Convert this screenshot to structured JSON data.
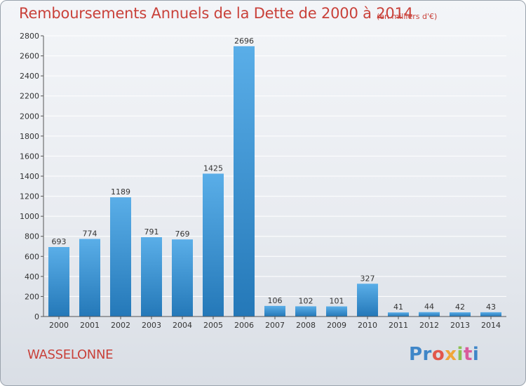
{
  "header": {
    "title": "Remboursements Annuels de la Dette de 2000 à 2014",
    "unit": "(en milliers d'€)"
  },
  "commune": "WASSELONNE",
  "logo": {
    "parts": [
      "Pr",
      "o",
      "x",
      "i",
      "t",
      "i"
    ],
    "colors": [
      "#3f86c8",
      "#e2574c",
      "#f0a63a",
      "#8cc152",
      "#d95b9b",
      "#3f86c8"
    ]
  },
  "colors": {
    "title": "#c9413a",
    "bar_light": "#5aaee8",
    "bar_dark": "#2478b8",
    "grid": "#ffffff"
  },
  "chart_data": {
    "type": "bar",
    "title": "Remboursements Annuels de la Dette de 2000 à 2014",
    "subtitle": "(en milliers d'€)",
    "categories": [
      "2000",
      "2001",
      "2002",
      "2003",
      "2004",
      "2005",
      "2006",
      "2007",
      "2008",
      "2009",
      "2010",
      "2011",
      "2012",
      "2013",
      "2014"
    ],
    "values": [
      693,
      774,
      1189,
      791,
      769,
      1425,
      2696,
      106,
      102,
      101,
      327,
      41,
      44,
      42,
      43
    ],
    "ylim": [
      0,
      2800
    ],
    "yticks": [
      0,
      200,
      400,
      600,
      800,
      1000,
      1200,
      1400,
      1600,
      1800,
      2000,
      2200,
      2400,
      2600,
      2800
    ],
    "grid": true,
    "xlabel": "",
    "ylabel": ""
  }
}
